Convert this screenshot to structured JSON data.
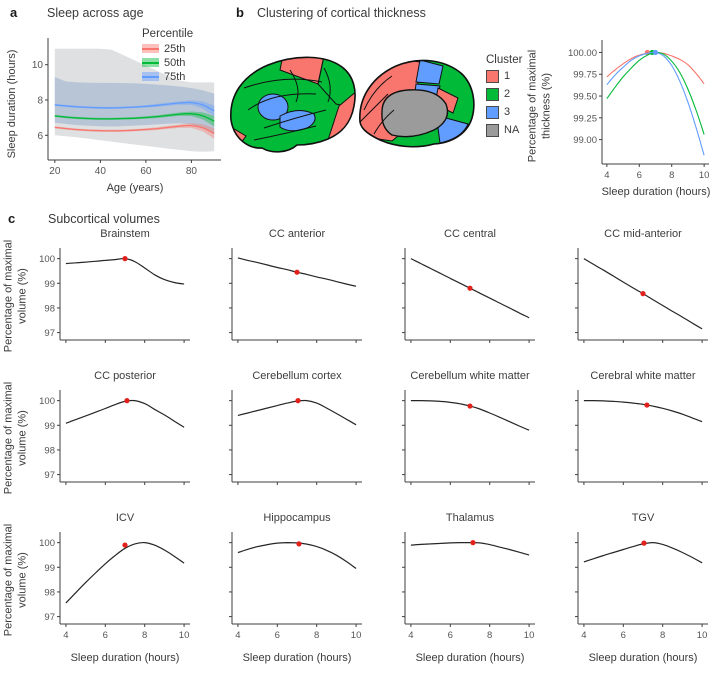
{
  "colors": {
    "cluster1_red": "#F8766D",
    "cluster2_green": "#00BA38",
    "cluster3_blue": "#619CFF",
    "na_gray": "#9B9B9B",
    "curve_black": "#262626",
    "dot_red": "#E3211C",
    "axis": "#3f3f3f",
    "tick_text": "#555555",
    "outer_band_gray": "#DEE0E2",
    "inner_band_blue": "rgba(105,140,190,0.32)"
  },
  "panel_a": {
    "label": "a",
    "title": "Sleep across age",
    "legend": {
      "title": "Percentile",
      "entries": [
        {
          "label": "25th",
          "color": "#F8766D"
        },
        {
          "label": "50th",
          "color": "#00BA38"
        },
        {
          "label": "75th",
          "color": "#619CFF"
        }
      ]
    }
  },
  "panel_b": {
    "label": "b",
    "title": "Clustering of cortical thickness",
    "cluster_legend": {
      "title": "Cluster",
      "entries": [
        {
          "label": "1",
          "color": "#F8766D"
        },
        {
          "label": "2",
          "color": "#00BA38"
        },
        {
          "label": "3",
          "color": "#619CFF"
        },
        {
          "label": "NA",
          "color": "#9B9B9B"
        }
      ]
    }
  },
  "panel_c": {
    "label": "c",
    "title": "Subcortical volumes"
  },
  "chart_data": [
    {
      "type": "line",
      "title": "Sleep across age",
      "xlabel": "Age (years)",
      "ylabel": "Sleep duration (hours)",
      "x": [
        20,
        25,
        30,
        35,
        40,
        45,
        50,
        55,
        60,
        65,
        70,
        75,
        80,
        85,
        90
      ],
      "xlim": [
        17,
        93
      ],
      "ylim": [
        4.6,
        11.4
      ],
      "xticks": [
        20,
        40,
        60,
        80
      ],
      "yticks": [
        6,
        8,
        10
      ],
      "legend_title": "Percentile",
      "outer_band": {
        "upper": [
          10.9,
          10.9,
          10.9,
          10.9,
          10.9,
          10.85,
          10.55,
          10.25,
          9.95,
          9.65,
          9.35,
          9.1,
          9.0,
          9.0,
          9.0
        ],
        "lower": [
          6.0,
          5.95,
          5.88,
          5.8,
          5.72,
          5.64,
          5.56,
          5.48,
          5.4,
          5.32,
          5.24,
          5.17,
          5.1,
          5.07,
          5.1
        ]
      },
      "inner_band": {
        "upper": [
          9.3,
          9.05,
          9.0,
          8.98,
          8.97,
          8.97,
          8.96,
          8.94,
          8.91,
          8.87,
          8.82,
          8.76,
          8.68,
          8.55,
          8.35
        ],
        "lower": [
          6.72,
          6.64,
          6.58,
          6.54,
          6.51,
          6.5,
          6.52,
          6.55,
          6.58,
          6.62,
          6.66,
          6.68,
          6.62,
          6.4,
          6.08
        ]
      },
      "ribbon_halfwidth": [
        0.06,
        0.06,
        0.06,
        0.06,
        0.06,
        0.06,
        0.06,
        0.06,
        0.07,
        0.08,
        0.09,
        0.1,
        0.13,
        0.2,
        0.3
      ],
      "series": [
        {
          "name": "25th",
          "color": "#F8766D",
          "values": [
            6.45,
            6.38,
            6.32,
            6.28,
            6.26,
            6.25,
            6.26,
            6.29,
            6.33,
            6.38,
            6.45,
            6.52,
            6.55,
            6.42,
            6.1
          ]
        },
        {
          "name": "50th",
          "color": "#00BA38",
          "values": [
            7.1,
            7.03,
            6.98,
            6.95,
            6.93,
            6.93,
            6.95,
            6.97,
            7.01,
            7.06,
            7.13,
            7.2,
            7.22,
            7.1,
            6.8
          ]
        },
        {
          "name": "75th",
          "color": "#619CFF",
          "values": [
            7.72,
            7.66,
            7.61,
            7.58,
            7.56,
            7.55,
            7.57,
            7.6,
            7.64,
            7.7,
            7.77,
            7.83,
            7.85,
            7.72,
            7.38
          ]
        }
      ]
    },
    {
      "type": "line",
      "title": "Clustering of cortical thickness",
      "xlabel": "Sleep duration (hours)",
      "ylabel": "Percentage of maximal\nthickness (%)",
      "x": [
        4,
        4.5,
        5,
        5.5,
        6,
        6.5,
        7,
        7.5,
        8,
        8.5,
        9,
        9.5,
        10
      ],
      "xlim": [
        3.7,
        10.3
      ],
      "ylim": [
        98.72,
        100.12
      ],
      "xticks": [
        4,
        6,
        8,
        10
      ],
      "yticks": [
        99.0,
        99.25,
        99.5,
        99.75,
        100.0
      ],
      "series": [
        {
          "name": "Cluster 1",
          "color": "#F8766D",
          "dot": [
            6.5,
            100
          ],
          "values": [
            99.72,
            99.8,
            99.87,
            99.93,
            99.97,
            99.99,
            100.0,
            99.99,
            99.96,
            99.92,
            99.86,
            99.76,
            99.64
          ]
        },
        {
          "name": "Cluster 2",
          "color": "#00BA38",
          "dot": [
            6.8,
            100
          ],
          "values": [
            99.47,
            99.6,
            99.72,
            99.82,
            99.91,
            99.97,
            100.0,
            99.98,
            99.9,
            99.77,
            99.58,
            99.34,
            99.06
          ]
        },
        {
          "name": "Cluster 3",
          "color": "#619CFF",
          "dot": [
            7.0,
            100
          ],
          "values": [
            99.63,
            99.74,
            99.83,
            99.91,
            99.96,
            99.99,
            100.0,
            99.96,
            99.85,
            99.67,
            99.43,
            99.14,
            98.82
          ]
        }
      ]
    },
    {
      "type": "line",
      "title": "Subcortical volumes",
      "xlabel": "Sleep duration (hours)",
      "ylabel": "Percentage of maximal\nvolume (%)",
      "x": [
        4,
        4.5,
        5,
        5.5,
        6,
        6.5,
        7,
        7.5,
        8,
        8.5,
        9,
        9.5,
        10
      ],
      "xlim": [
        3.7,
        10.3
      ],
      "ylim": [
        96.7,
        100.35
      ],
      "xticks": [
        4,
        6,
        8,
        10
      ],
      "yticks": [
        97,
        98,
        99,
        100
      ],
      "plots": [
        {
          "title": "Brainstem",
          "dot": [
            7,
            100
          ],
          "values": [
            99.8,
            99.83,
            99.86,
            99.89,
            99.93,
            99.96,
            100.0,
            99.88,
            99.62,
            99.35,
            99.15,
            99.03,
            98.97
          ]
        },
        {
          "title": "CC anterior",
          "dot": [
            7,
            99.45
          ],
          "values": [
            100.03,
            99.93,
            99.84,
            99.74,
            99.64,
            99.55,
            99.45,
            99.36,
            99.26,
            99.17,
            99.07,
            98.97,
            98.88
          ]
        },
        {
          "title": "CC central",
          "dot": [
            7,
            98.8
          ],
          "values": [
            100.0,
            99.8,
            99.6,
            99.4,
            99.2,
            99.0,
            98.8,
            98.6,
            98.4,
            98.2,
            98.0,
            97.8,
            97.6
          ]
        },
        {
          "title": "CC mid-anterior",
          "dot": [
            7,
            98.58
          ],
          "values": [
            100.0,
            99.76,
            99.53,
            99.29,
            99.05,
            98.81,
            98.58,
            98.34,
            98.1,
            97.86,
            97.63,
            97.39,
            97.15
          ]
        },
        {
          "title": "CC posterior",
          "dot": [
            7.1,
            100
          ],
          "values": [
            99.08,
            99.23,
            99.38,
            99.53,
            99.68,
            99.84,
            99.97,
            100.0,
            99.88,
            99.65,
            99.42,
            99.17,
            98.92
          ]
        },
        {
          "title": "Cerebellum cortex",
          "dot": [
            7.05,
            100
          ],
          "values": [
            99.4,
            99.5,
            99.6,
            99.7,
            99.8,
            99.9,
            99.98,
            100.0,
            99.9,
            99.7,
            99.48,
            99.25,
            99.02
          ]
        },
        {
          "title": "Cerebellum white matter",
          "dot": [
            7,
            99.78
          ],
          "values": [
            100.0,
            100.0,
            99.99,
            99.97,
            99.93,
            99.87,
            99.78,
            99.66,
            99.5,
            99.33,
            99.15,
            98.97,
            98.8
          ]
        },
        {
          "title": "Cerebral white matter",
          "dot": [
            7.2,
            99.82
          ],
          "values": [
            100.0,
            100.0,
            99.99,
            99.97,
            99.94,
            99.9,
            99.85,
            99.78,
            99.69,
            99.58,
            99.45,
            99.3,
            99.15
          ]
        },
        {
          "title": "ICV",
          "dot": [
            7,
            99.9
          ],
          "values": [
            97.55,
            97.97,
            98.38,
            98.77,
            99.14,
            99.48,
            99.77,
            99.95,
            100.0,
            99.9,
            99.7,
            99.45,
            99.17
          ]
        },
        {
          "title": "Hippocampus",
          "dot": [
            7.1,
            99.95
          ],
          "values": [
            99.6,
            99.73,
            99.84,
            99.92,
            99.98,
            100.0,
            99.99,
            99.94,
            99.84,
            99.69,
            99.49,
            99.24,
            98.95
          ]
        },
        {
          "title": "Thalamus",
          "dot": [
            7.15,
            100
          ],
          "values": [
            99.9,
            99.93,
            99.95,
            99.97,
            99.99,
            100.0,
            100.0,
            99.99,
            99.92,
            99.82,
            99.72,
            99.61,
            99.5
          ]
        },
        {
          "title": "TGV",
          "dot": [
            7.05,
            99.98
          ],
          "values": [
            99.22,
            99.35,
            99.48,
            99.6,
            99.72,
            99.84,
            99.95,
            100.0,
            99.93,
            99.78,
            99.6,
            99.4,
            99.18
          ]
        }
      ]
    }
  ]
}
